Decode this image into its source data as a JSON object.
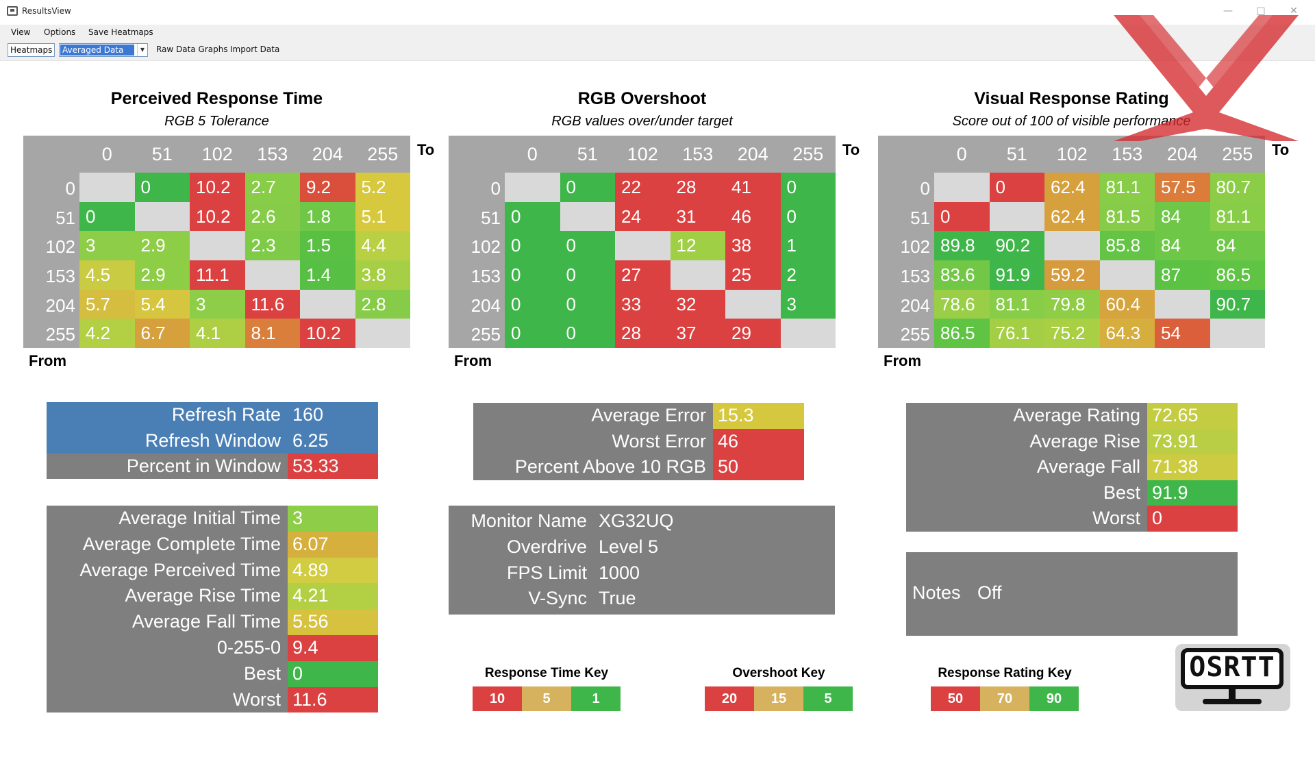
{
  "window": {
    "title": "ResultsView"
  },
  "menu": [
    "View",
    "Options",
    "Save Heatmaps"
  ],
  "toolbar": {
    "heatmaps_label": "Heatmaps",
    "data_select_value": "Averaged Data",
    "raw_graphs_label": "Raw Data Graphs",
    "import_label": "Import Data"
  },
  "axis": {
    "to": "To",
    "from": "From"
  },
  "heatmaps": [
    {
      "title": "Perceived Response Time",
      "subtitle": "RGB 5 Tolerance",
      "cols": [
        "0",
        "51",
        "102",
        "153",
        "204",
        "255"
      ],
      "rows": [
        "0",
        "51",
        "102",
        "153",
        "204",
        "255"
      ],
      "cells": [
        [
          null,
          "0",
          "10.2",
          "2.7",
          "9.2",
          "5.2"
        ],
        [
          "0",
          null,
          "10.2",
          "2.6",
          "1.8",
          "5.1"
        ],
        [
          "3",
          "2.9",
          null,
          "2.3",
          "1.5",
          "4.4"
        ],
        [
          "4.5",
          "2.9",
          "11.1",
          null,
          "1.4",
          "3.8"
        ],
        [
          "5.7",
          "5.4",
          "3",
          "11.6",
          null,
          "2.8"
        ],
        [
          "4.2",
          "6.7",
          "4.1",
          "8.1",
          "10.2",
          null
        ]
      ],
      "colors": [
        [
          "#d9d9d9",
          "#3fb649",
          "#db4141",
          "#88cd48",
          "#d94f3c",
          "#d7c83e"
        ],
        [
          "#3fb649",
          "#d9d9d9",
          "#db4141",
          "#86cc48",
          "#6ec746",
          "#d7c93e"
        ],
        [
          "#8dcd47",
          "#8ecd46",
          "#d9d9d9",
          "#7fca47",
          "#5ac044",
          "#b9d044"
        ],
        [
          "#c9cc42",
          "#8ecd46",
          "#db4141",
          "#d9d9d9",
          "#56bf44",
          "#a6cf45"
        ],
        [
          "#d5bd3f",
          "#d6c53e",
          "#8dcd47",
          "#db4141",
          "#d9d9d9",
          "#86cc48"
        ],
        [
          "#b3cf44",
          "#d6a03d",
          "#aecf44",
          "#da7e3b",
          "#db4141",
          "#d9d9d9"
        ]
      ]
    },
    {
      "title": "RGB Overshoot",
      "subtitle": "RGB values over/under target",
      "cols": [
        "0",
        "51",
        "102",
        "153",
        "204",
        "255"
      ],
      "rows": [
        "0",
        "51",
        "102",
        "153",
        "204",
        "255"
      ],
      "cells": [
        [
          null,
          "0",
          "22",
          "28",
          "41",
          "0"
        ],
        [
          "0",
          null,
          "24",
          "31",
          "46",
          "0"
        ],
        [
          "0",
          "0",
          null,
          "12",
          "38",
          "1"
        ],
        [
          "0",
          "0",
          "27",
          null,
          "25",
          "2"
        ],
        [
          "0",
          "0",
          "33",
          "32",
          null,
          "3"
        ],
        [
          "0",
          "0",
          "28",
          "37",
          "29",
          null
        ]
      ],
      "colors": [
        [
          "#d9d9d9",
          "#3fb649",
          "#db4141",
          "#db4141",
          "#db4141",
          "#3fb649"
        ],
        [
          "#3fb649",
          "#d9d9d9",
          "#db4141",
          "#db4141",
          "#db4141",
          "#3fb649"
        ],
        [
          "#3fb649",
          "#3fb649",
          "#d9d9d9",
          "#9fcf45",
          "#db4141",
          "#3fb649"
        ],
        [
          "#3fb649",
          "#3fb649",
          "#db4141",
          "#d9d9d9",
          "#db4141",
          "#3fb649"
        ],
        [
          "#3fb649",
          "#3fb649",
          "#db4141",
          "#db4141",
          "#d9d9d9",
          "#3fb649"
        ],
        [
          "#3fb649",
          "#3fb649",
          "#db4141",
          "#db4141",
          "#db4141",
          "#d9d9d9"
        ]
      ]
    },
    {
      "title": "Visual Response Rating",
      "subtitle": "Score out of 100 of visible performance",
      "cols": [
        "0",
        "51",
        "102",
        "153",
        "204",
        "255"
      ],
      "rows": [
        "0",
        "51",
        "102",
        "153",
        "204",
        "255"
      ],
      "cells": [
        [
          null,
          "0",
          "62.4",
          "81.1",
          "57.5",
          "80.7"
        ],
        [
          "0",
          null,
          "62.4",
          "81.5",
          "84",
          "81.1"
        ],
        [
          "89.8",
          "90.2",
          null,
          "85.8",
          "84",
          "84"
        ],
        [
          "83.6",
          "91.9",
          "59.2",
          null,
          "87",
          "86.5"
        ],
        [
          "78.6",
          "81.1",
          "79.8",
          "60.4",
          null,
          "90.7"
        ],
        [
          "86.5",
          "76.1",
          "75.2",
          "64.3",
          "54",
          null
        ]
      ],
      "colors": [
        [
          "#d9d9d9",
          "#db4141",
          "#d6a03d",
          "#88cd48",
          "#dc7c3b",
          "#8ccd47"
        ],
        [
          "#db4141",
          "#d9d9d9",
          "#d6a03d",
          "#86cc48",
          "#6ec746",
          "#88cd48"
        ],
        [
          "#3fb649",
          "#3fb649",
          "#d9d9d9",
          "#63c445",
          "#6ec746",
          "#6ec746"
        ],
        [
          "#72c746",
          "#3fb649",
          "#d69b3c",
          "#d9d9d9",
          "#5bc244",
          "#5fc344"
        ],
        [
          "#99ce46",
          "#88cd48",
          "#90cd47",
          "#d6a43d",
          "#d9d9d9",
          "#3fb649"
        ],
        [
          "#5fc344",
          "#a4cf45",
          "#a9cf45",
          "#d6ae3d",
          "#db5f3b",
          "#d9d9d9"
        ]
      ]
    }
  ],
  "refresh_panel": [
    {
      "label": "Refresh Rate",
      "value": "160",
      "color": "#4a7fb5"
    },
    {
      "label": "Refresh Window",
      "value": "6.25",
      "color": "#4a7fb5"
    },
    {
      "label": "Percent in Window",
      "value": "53.33",
      "color": "#db4141"
    }
  ],
  "time_panel": [
    {
      "label": "Average Initial Time",
      "value": "3",
      "color": "#8dcd47"
    },
    {
      "label": "Average Complete Time",
      "value": "6.07",
      "color": "#d6b03d"
    },
    {
      "label": "Average Perceived Time",
      "value": "4.89",
      "color": "#d2cc42"
    },
    {
      "label": "Average Rise Time",
      "value": "4.21",
      "color": "#b3cf44"
    },
    {
      "label": "Average Fall Time",
      "value": "5.56",
      "color": "#d6c23e"
    },
    {
      "label": "0-255-0",
      "value": "9.4",
      "color": "#db4141"
    },
    {
      "label": "Best",
      "value": "0",
      "color": "#3fb649"
    },
    {
      "label": "Worst",
      "value": "11.6",
      "color": "#db4141"
    }
  ],
  "error_panel": [
    {
      "label": "Average Error",
      "value": "15.3",
      "color": "#d6c83e"
    },
    {
      "label": "Worst Error",
      "value": "46",
      "color": "#db4141"
    },
    {
      "label": "Percent Above 10 RGB",
      "value": "50",
      "color": "#db4141"
    }
  ],
  "monitor_panel": [
    {
      "label": "Monitor Name",
      "value": "XG32UQ"
    },
    {
      "label": "Overdrive",
      "value": "Level 5"
    },
    {
      "label": "FPS Limit",
      "value": "1000"
    },
    {
      "label": "V-Sync",
      "value": "True"
    }
  ],
  "rating_panel": [
    {
      "label": "Average Rating",
      "value": "72.65",
      "color": "#c4cc42"
    },
    {
      "label": "Average Rise",
      "value": "73.91",
      "color": "#b9ce44"
    },
    {
      "label": "Average Fall",
      "value": "71.38",
      "color": "#cccb41"
    },
    {
      "label": "Best",
      "value": "91.9",
      "color": "#3fb649"
    },
    {
      "label": "Worst",
      "value": "0",
      "color": "#db4141"
    }
  ],
  "notes": {
    "label": "Notes",
    "value": "Off"
  },
  "keys": [
    {
      "title": "Response Time Key",
      "cells": [
        {
          "v": "10",
          "c": "#db4141"
        },
        {
          "v": "5",
          "c": "#d6b25e"
        },
        {
          "v": "1",
          "c": "#3fb649"
        }
      ]
    },
    {
      "title": "Overshoot Key",
      "cells": [
        {
          "v": "20",
          "c": "#db4141"
        },
        {
          "v": "15",
          "c": "#d6b25e"
        },
        {
          "v": "5",
          "c": "#3fb649"
        }
      ]
    },
    {
      "title": "Response Rating Key",
      "cells": [
        {
          "v": "50",
          "c": "#db4141"
        },
        {
          "v": "70",
          "c": "#d6b25e"
        },
        {
          "v": "90",
          "c": "#3fb649"
        }
      ]
    }
  ],
  "logo": {
    "text": "OSRTT"
  }
}
